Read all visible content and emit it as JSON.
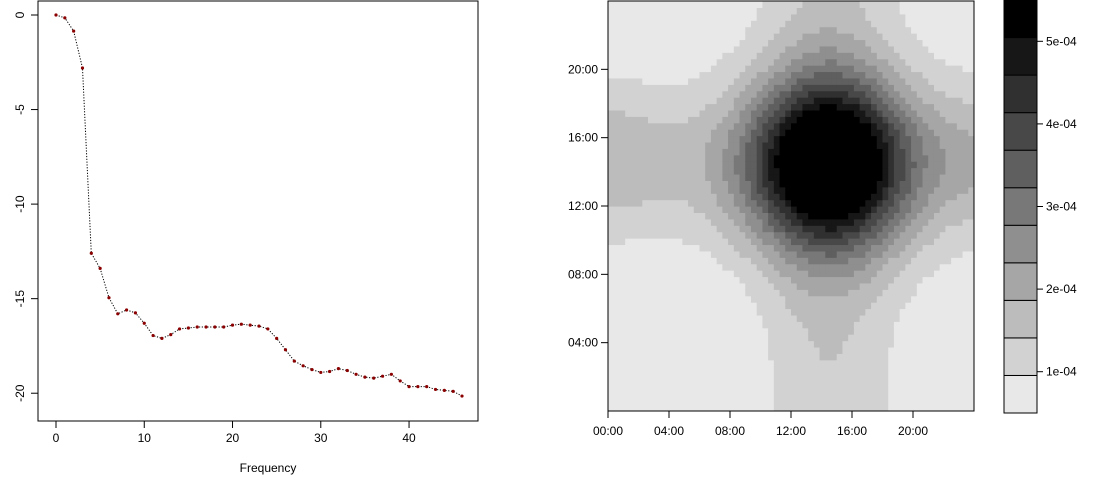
{
  "chart_data": [
    {
      "type": "line",
      "xlabel": "Frequency",
      "ylabel": "",
      "xlim": [
        0,
        46
      ],
      "ylim": [
        -20.2,
        0
      ],
      "x_ticks": [
        0,
        10,
        20,
        30,
        40
      ],
      "y_ticks": [
        0,
        -5,
        -10,
        -15,
        -20
      ],
      "line_style": "dotted",
      "line_color": "#000000",
      "point_color": "#8b0000",
      "series": [
        {
          "x": [
            0,
            1,
            2,
            3,
            4,
            5,
            6,
            7,
            8,
            9,
            10,
            11,
            12,
            13,
            14,
            15,
            16,
            17,
            18,
            19,
            20,
            21,
            22,
            23,
            24,
            25,
            26,
            27,
            28,
            29,
            30,
            31,
            32,
            33,
            34,
            35,
            36,
            37,
            38,
            39,
            40,
            41,
            42,
            43,
            44,
            45,
            46
          ],
          "values": [
            0.0,
            -0.15,
            -0.85,
            -2.8,
            -12.6,
            -13.4,
            -14.95,
            -15.8,
            -15.6,
            -15.75,
            -16.3,
            -16.95,
            -17.1,
            -16.9,
            -16.6,
            -16.55,
            -16.5,
            -16.5,
            -16.5,
            -16.5,
            -16.4,
            -16.35,
            -16.4,
            -16.45,
            -16.6,
            -17.1,
            -17.7,
            -18.3,
            -18.55,
            -18.75,
            -18.9,
            -18.85,
            -18.7,
            -18.8,
            -19.0,
            -19.15,
            -19.2,
            -19.1,
            -19.0,
            -19.35,
            -19.65,
            -19.65,
            -19.65,
            -19.8,
            -19.85,
            -19.9,
            -20.15
          ]
        }
      ]
    },
    {
      "type": "heatmap",
      "x_ticks": [
        "00:00",
        "04:00",
        "08:00",
        "12:00",
        "16:00",
        "20:00"
      ],
      "y_ticks": [
        "04:00",
        "08:00",
        "12:00",
        "16:00",
        "20:00"
      ],
      "x_range_hours": [
        0,
        24
      ],
      "y_range_hours": [
        0,
        24
      ],
      "legend_ticks": [
        "1e-04",
        "2e-04",
        "3e-04",
        "4e-04",
        "5e-04"
      ],
      "levels": [
        5e-05,
        0.0001,
        0.00015,
        0.0002,
        0.00025,
        0.0003,
        0.00035,
        0.0004,
        0.00045,
        0.0005,
        0.00055
      ],
      "level_colors": [
        "#e8e8e8",
        "#d2d2d2",
        "#bcbcbc",
        "#a6a6a6",
        "#8f8f8f",
        "#787878",
        "#5f5f5f",
        "#484848",
        "#303030",
        "#171717",
        "#000000"
      ],
      "legend_placement": "right"
    }
  ]
}
